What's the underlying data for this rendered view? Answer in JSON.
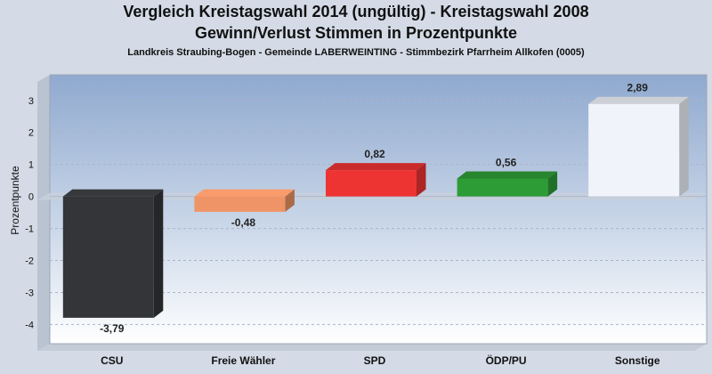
{
  "title": "Vergleich Kreistagswahl 2014 (ungültig) - Kreistagswahl 2008",
  "title2": "Gewinn/Verlust Stimmen in Prozentpunkte",
  "subtitle": "Landkreis Straubing-Bogen - Gemeinde LABERWEINTING - Stimmbezirk Pfarrheim Allkofen (0005)",
  "chart_data": {
    "type": "bar",
    "title": "Vergleich Kreistagswahl 2014 (ungültig) - Kreistagswahl 2008",
    "subtitle": "Gewinn/Verlust Stimmen in Prozentpunkte",
    "ylabel": "Prozentpunkte",
    "xlabel": "",
    "ylim": [
      -4.6,
      3.8
    ],
    "yticks": [
      -4,
      -3,
      -2,
      -1,
      0,
      1,
      2,
      3
    ],
    "grid": true,
    "categories": [
      "CSU",
      "Freie Wähler",
      "SPD",
      "ÖDP/PU",
      "Sonstige"
    ],
    "values": [
      -3.79,
      -0.48,
      0.82,
      0.56,
      2.89
    ],
    "value_labels": [
      "-3,79",
      "-0,48",
      "0,82",
      "0,56",
      "2,89"
    ],
    "colors": [
      "#333538",
      "#ee9466",
      "#ee3333",
      "#2e9c36",
      "#f0f4fa"
    ]
  }
}
